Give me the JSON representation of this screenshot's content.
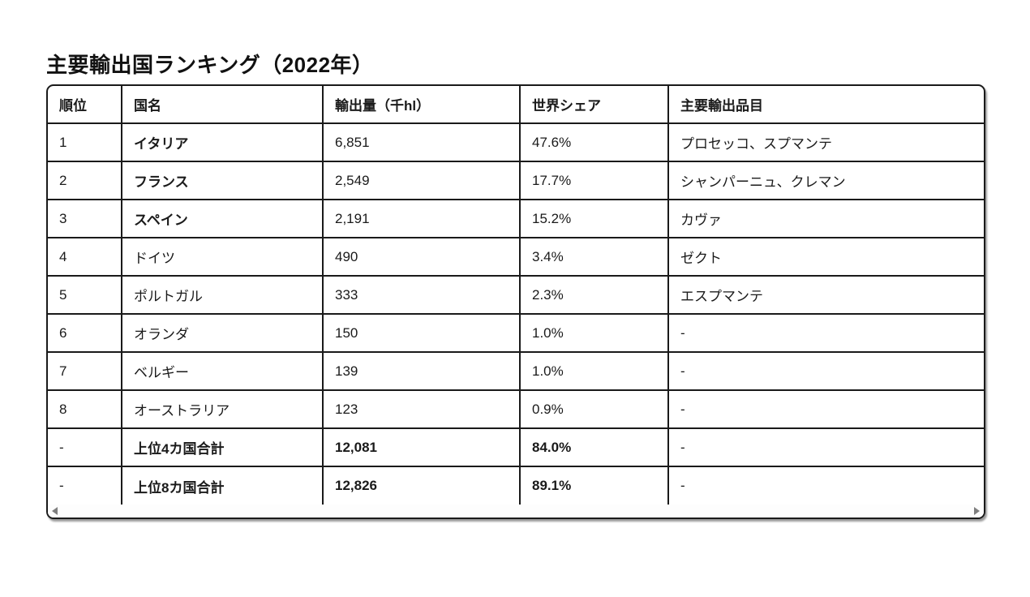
{
  "title": "主要輸出国ランキング（2022年）",
  "table": {
    "columns": [
      {
        "label": "順位"
      },
      {
        "label": "国名"
      },
      {
        "label": "輸出量（千hl）"
      },
      {
        "label": "世界シェア"
      },
      {
        "label": "主要輸出品目"
      }
    ],
    "rows": [
      {
        "rank": "1",
        "country": "イタリア",
        "volume": "6,851",
        "share": "47.6%",
        "items": "プロセッコ、スプマンテ",
        "country_bold": true,
        "values_bold": false
      },
      {
        "rank": "2",
        "country": "フランス",
        "volume": "2,549",
        "share": "17.7%",
        "items": "シャンパーニュ、クレマン",
        "country_bold": true,
        "values_bold": false
      },
      {
        "rank": "3",
        "country": "スペイン",
        "volume": "2,191",
        "share": "15.2%",
        "items": "カヴァ",
        "country_bold": true,
        "values_bold": false
      },
      {
        "rank": "4",
        "country": "ドイツ",
        "volume": "490",
        "share": "3.4%",
        "items": "ゼクト",
        "country_bold": false,
        "values_bold": false
      },
      {
        "rank": "5",
        "country": "ポルトガル",
        "volume": "333",
        "share": "2.3%",
        "items": "エスプマンテ",
        "country_bold": false,
        "values_bold": false
      },
      {
        "rank": "6",
        "country": "オランダ",
        "volume": "150",
        "share": "1.0%",
        "items": "-",
        "country_bold": false,
        "values_bold": false
      },
      {
        "rank": "7",
        "country": "ベルギー",
        "volume": "139",
        "share": "1.0%",
        "items": "-",
        "country_bold": false,
        "values_bold": false
      },
      {
        "rank": "8",
        "country": "オーストラリア",
        "volume": "123",
        "share": "0.9%",
        "items": "-",
        "country_bold": false,
        "values_bold": false
      },
      {
        "rank": "-",
        "country": "上位4カ国合計",
        "volume": "12,081",
        "share": "84.0%",
        "items": "-",
        "country_bold": true,
        "values_bold": true
      },
      {
        "rank": "-",
        "country": "上位8カ国合計",
        "volume": "12,826",
        "share": "89.1%",
        "items": "-",
        "country_bold": true,
        "values_bold": true
      }
    ]
  },
  "colors": {
    "text": "#1a1a1a",
    "border": "#1a1a1a",
    "background": "#ffffff",
    "scroll_arrow": "#7f7f7f"
  }
}
